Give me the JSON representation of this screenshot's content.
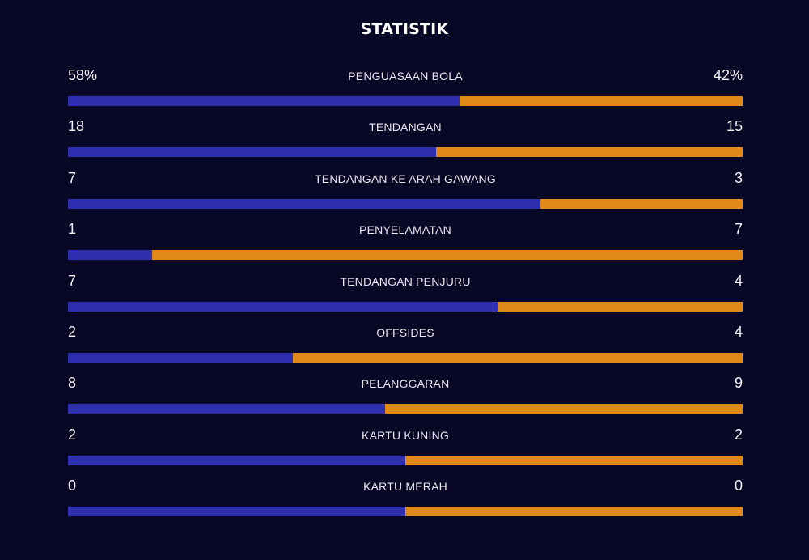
{
  "title": "STATISTIK",
  "colors": {
    "background": "#080725",
    "home_bar": "#2e2fae",
    "away_bar": "#e0891a"
  },
  "stats": [
    {
      "label": "PENGUASAAN BOLA",
      "home": "58%",
      "away": "42%",
      "home_value": 58,
      "away_value": 42
    },
    {
      "label": "TENDANGAN",
      "home": "18",
      "away": "15",
      "home_value": 18,
      "away_value": 15
    },
    {
      "label": "TENDANGAN KE ARAH GAWANG",
      "home": "7",
      "away": "3",
      "home_value": 7,
      "away_value": 3
    },
    {
      "label": "PENYELAMATAN",
      "home": "1",
      "away": "7",
      "home_value": 1,
      "away_value": 7
    },
    {
      "label": "TENDANGAN PENJURU",
      "home": "7",
      "away": "4",
      "home_value": 7,
      "away_value": 4
    },
    {
      "label": "OFFSIDES",
      "home": "2",
      "away": "4",
      "home_value": 2,
      "away_value": 4
    },
    {
      "label": "PELANGGARAN",
      "home": "8",
      "away": "9",
      "home_value": 8,
      "away_value": 9
    },
    {
      "label": "KARTU KUNING",
      "home": "2",
      "away": "2",
      "home_value": 2,
      "away_value": 2
    },
    {
      "label": "KARTU MERAH",
      "home": "0",
      "away": "0",
      "home_value": 0,
      "away_value": 0
    }
  ]
}
